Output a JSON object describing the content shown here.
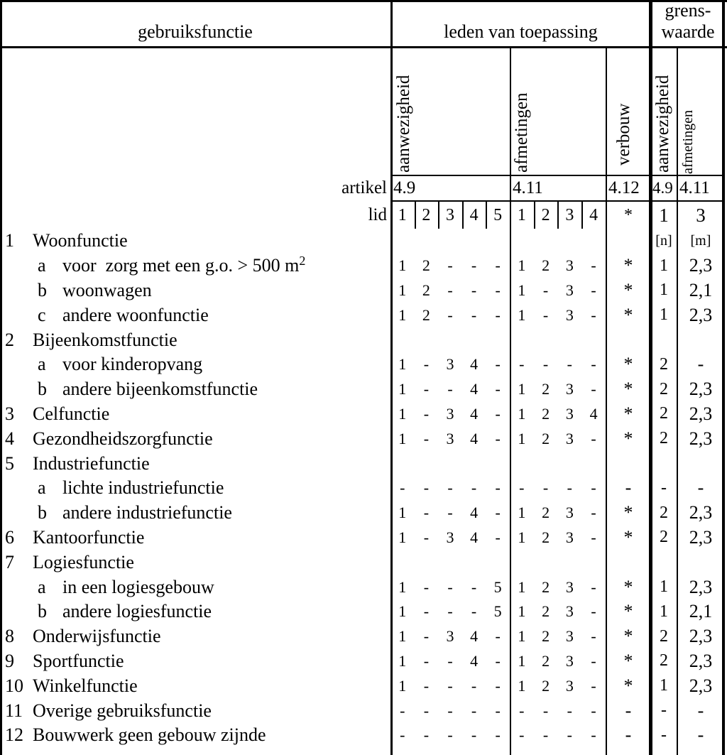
{
  "page": {
    "background_color": "#ffffff",
    "line_color": "#000000",
    "text_color": "#000000"
  },
  "table": {
    "header": {
      "gebruiksfunctie": "gebruiksfunctie",
      "leden_van_toepassing": "leden van toepassing",
      "grenswaarde": "grens-\nwaarde"
    },
    "subheaders": {
      "leden_aanwezigheid": "aanwezigheid",
      "leden_afmetingen": "afmetingen",
      "verbouw": "verbouw",
      "grens_aanwezigheid": "aanwezigheid",
      "grens_afmetingen": "afmetingen"
    },
    "artikel": {
      "label": "artikel",
      "leden_aanwezigheid": "4.9",
      "leden_afmetingen": "4.11",
      "verbouw": "4.12",
      "grens_aanwezigheid": "4.9",
      "grens_afmetingen": "4.11"
    },
    "lid": {
      "label": "lid",
      "leden_aanwezigheid": [
        "1",
        "2",
        "3",
        "4",
        "5"
      ],
      "leden_afmetingen": [
        "1",
        "2",
        "3",
        "4"
      ],
      "verbouw": "*",
      "grens_aanwezigheid": "1",
      "grens_afmetingen": "3"
    },
    "rows": [
      {
        "num": "1",
        "label": "Woonfunctie",
        "units": {
          "grens_aanwezigheid": "[n]",
          "grens_afmetingen": "[m]"
        }
      },
      {
        "letter": "a",
        "label": "voor  zorg met een g.o. > 500 m",
        "label_superscript": "2",
        "v": {
          "aanwezigheid": [
            "1",
            "2",
            "-",
            "-",
            "-"
          ],
          "afmetingen": [
            "1",
            "2",
            "3",
            "-"
          ],
          "verbouw": "*",
          "grens_aanwezigheid": "1",
          "grens_afmetingen": "2,3"
        }
      },
      {
        "letter": "b",
        "label": "woonwagen",
        "v": {
          "aanwezigheid": [
            "1",
            "2",
            "-",
            "-",
            "-"
          ],
          "afmetingen": [
            "1",
            "-",
            "3",
            "-"
          ],
          "verbouw": "*",
          "grens_aanwezigheid": "1",
          "grens_afmetingen": "2,1"
        }
      },
      {
        "letter": "c",
        "label": "andere woonfunctie",
        "v": {
          "aanwezigheid": [
            "1",
            "2",
            "-",
            "-",
            "-"
          ],
          "afmetingen": [
            "1",
            "-",
            "3",
            "-"
          ],
          "verbouw": "*",
          "grens_aanwezigheid": "1",
          "grens_afmetingen": "2,3"
        }
      },
      {
        "num": "2",
        "label": "Bijeenkomstfunctie"
      },
      {
        "letter": "a",
        "label": "voor kinderopvang",
        "v": {
          "aanwezigheid": [
            "1",
            "-",
            "3",
            "4",
            "-"
          ],
          "afmetingen": [
            "-",
            "-",
            "-",
            "-"
          ],
          "verbouw": "*",
          "grens_aanwezigheid": "2",
          "grens_afmetingen": "-"
        }
      },
      {
        "letter": "b",
        "label": "andere bijeenkomstfunctie",
        "v": {
          "aanwezigheid": [
            "1",
            "-",
            "-",
            "4",
            "-"
          ],
          "afmetingen": [
            "1",
            "2",
            "3",
            "-"
          ],
          "verbouw": "*",
          "grens_aanwezigheid": "2",
          "grens_afmetingen": "2,3"
        }
      },
      {
        "num": "3",
        "label": "Celfunctie",
        "v": {
          "aanwezigheid": [
            "1",
            "-",
            "3",
            "4",
            "-"
          ],
          "afmetingen": [
            "1",
            "2",
            "3",
            "4"
          ],
          "verbouw": "*",
          "grens_aanwezigheid": "2",
          "grens_afmetingen": "2,3"
        }
      },
      {
        "num": "4",
        "label": "Gezondheidszorgfunctie",
        "v": {
          "aanwezigheid": [
            "1",
            "-",
            "3",
            "4",
            "-"
          ],
          "afmetingen": [
            "1",
            "2",
            "3",
            "-"
          ],
          "verbouw": "*",
          "grens_aanwezigheid": "2",
          "grens_afmetingen": "2,3"
        }
      },
      {
        "num": "5",
        "label": "Industriefunctie"
      },
      {
        "letter": "a",
        "label": "lichte industriefunctie",
        "v": {
          "aanwezigheid": [
            "-",
            "-",
            "-",
            "-",
            "-"
          ],
          "afmetingen": [
            "-",
            "-",
            "-",
            "-"
          ],
          "verbouw": "-",
          "grens_aanwezigheid": "-",
          "grens_afmetingen": "-"
        }
      },
      {
        "letter": "b",
        "label": "andere industriefunctie",
        "v": {
          "aanwezigheid": [
            "1",
            "-",
            "-",
            "4",
            "-"
          ],
          "afmetingen": [
            "1",
            "2",
            "3",
            "-"
          ],
          "verbouw": "*",
          "grens_aanwezigheid": "2",
          "grens_afmetingen": "2,3"
        }
      },
      {
        "num": "6",
        "label": "Kantoorfunctie",
        "v": {
          "aanwezigheid": [
            "1",
            "-",
            "3",
            "4",
            "-"
          ],
          "afmetingen": [
            "1",
            "2",
            "3",
            "-"
          ],
          "verbouw": "*",
          "grens_aanwezigheid": "2",
          "grens_afmetingen": "2,3"
        }
      },
      {
        "num": "7",
        "label": "Logiesfunctie"
      },
      {
        "letter": "a",
        "label": "in een logiesgebouw",
        "v": {
          "aanwezigheid": [
            "1",
            "-",
            "-",
            "-",
            "5"
          ],
          "afmetingen": [
            "1",
            "2",
            "3",
            "-"
          ],
          "verbouw": "*",
          "grens_aanwezigheid": "1",
          "grens_afmetingen": "2,3"
        }
      },
      {
        "letter": "b",
        "label": "andere logiesfunctie",
        "v": {
          "aanwezigheid": [
            "1",
            "-",
            "-",
            "-",
            "5"
          ],
          "afmetingen": [
            "1",
            "2",
            "3",
            "-"
          ],
          "verbouw": "*",
          "grens_aanwezigheid": "1",
          "grens_afmetingen": "2,1"
        }
      },
      {
        "num": "8",
        "label": "Onderwijsfunctie",
        "v": {
          "aanwezigheid": [
            "1",
            "-",
            "3",
            "4",
            "-"
          ],
          "afmetingen": [
            "1",
            "2",
            "3",
            "-"
          ],
          "verbouw": "*",
          "grens_aanwezigheid": "2",
          "grens_afmetingen": "2,3"
        }
      },
      {
        "num": "9",
        "label": "Sportfunctie",
        "v": {
          "aanwezigheid": [
            "1",
            "-",
            "-",
            "4",
            "-"
          ],
          "afmetingen": [
            "1",
            "2",
            "3",
            "-"
          ],
          "verbouw": "*",
          "grens_aanwezigheid": "2",
          "grens_afmetingen": "2,3"
        }
      },
      {
        "num": "10",
        "label": "Winkelfunctie",
        "v": {
          "aanwezigheid": [
            "1",
            "-",
            "-",
            "-",
            "-"
          ],
          "afmetingen": [
            "1",
            "2",
            "3",
            "-"
          ],
          "verbouw": "*",
          "grens_aanwezigheid": "1",
          "grens_afmetingen": "2,3"
        }
      },
      {
        "num": "11",
        "label": "Overige gebruiksfunctie",
        "v": {
          "aanwezigheid": [
            "-",
            "-",
            "-",
            "-",
            "-"
          ],
          "afmetingen": [
            "-",
            "-",
            "-",
            "-"
          ],
          "verbouw": "-",
          "grens_aanwezigheid": "-",
          "grens_afmetingen": "-"
        }
      },
      {
        "num": "12",
        "label": "Bouwwerk geen gebouw zijnde",
        "v": {
          "aanwezigheid": [
            "-",
            "-",
            "-",
            "-",
            "-"
          ],
          "afmetingen": [
            "-",
            "-",
            "-",
            "-"
          ],
          "verbouw": "-",
          "grens_aanwezigheid": "-",
          "grens_afmetingen": "-"
        }
      }
    ]
  }
}
